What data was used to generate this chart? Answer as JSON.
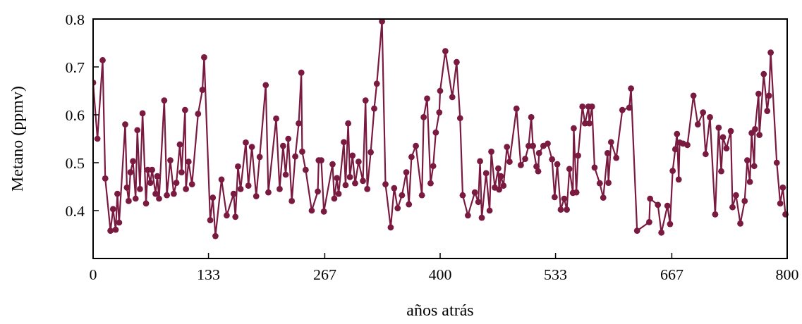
{
  "chart_data": {
    "type": "line",
    "xlabel": "años atrás",
    "ylabel": "Metano (ppmv)",
    "xlim": [
      0,
      800
    ],
    "ylim": [
      0.3,
      0.8
    ],
    "xticks": [
      0,
      133,
      267,
      400,
      533,
      667,
      800
    ],
    "yticks": [
      0.4,
      0.5,
      0.6,
      0.7,
      0.8
    ],
    "grid": false,
    "marker": "circle",
    "line_style": "solid",
    "series": [
      {
        "color": "#7a1a40",
        "x": [
          0,
          5,
          11,
          14,
          20,
          23,
          26,
          28,
          30,
          37,
          39,
          41,
          43,
          46,
          49,
          51,
          54,
          57,
          61,
          63,
          66,
          68,
          72,
          74,
          76,
          82,
          85,
          89,
          93,
          96,
          100,
          102,
          106,
          107,
          110,
          114,
          121,
          126,
          128,
          135,
          138,
          141,
          148,
          154,
          162,
          164,
          167,
          170,
          176,
          179,
          183,
          188,
          192,
          199,
          202,
          211,
          215,
          219,
          222,
          225,
          229,
          233,
          237,
          240,
          241,
          245,
          252,
          259,
          260,
          263,
          266,
          276,
          278,
          281,
          283,
          289,
          291,
          294,
          296,
          299,
          302,
          306,
          311,
          314,
          316,
          320,
          324,
          327,
          333,
          337,
          343,
          347,
          351,
          356,
          361,
          364,
          367,
          372,
          379,
          381,
          385,
          389,
          392,
          395,
          399,
          400,
          406,
          414,
          419,
          423,
          426,
          432,
          440,
          444,
          446,
          448,
          453,
          457,
          459,
          463,
          467,
          468,
          470,
          473,
          477,
          480,
          488,
          493,
          498,
          502,
          505,
          507,
          511,
          513,
          514,
          519,
          524,
          529,
          532,
          535,
          539,
          543,
          546,
          549,
          553,
          554,
          557,
          559,
          564,
          567,
          571,
          572,
          575,
          578,
          584,
          588,
          593,
          594,
          597,
          603,
          610,
          618,
          620,
          627,
          641,
          642,
          651,
          655,
          662,
          665,
          668,
          671,
          673,
          675,
          676,
          680,
          685,
          692,
          697,
          703,
          706,
          711,
          717,
          721,
          724,
          726,
          730,
          735,
          737,
          741,
          746,
          751,
          754,
          757,
          759,
          762,
          763,
          767,
          768,
          773,
          777,
          779,
          781,
          788,
          792,
          795,
          798
        ],
        "values": [
          0.667,
          0.55,
          0.714,
          0.467,
          0.358,
          0.403,
          0.36,
          0.435,
          0.375,
          0.58,
          0.448,
          0.42,
          0.48,
          0.503,
          0.425,
          0.568,
          0.445,
          0.603,
          0.415,
          0.485,
          0.458,
          0.485,
          0.435,
          0.472,
          0.425,
          0.63,
          0.432,
          0.505,
          0.435,
          0.458,
          0.538,
          0.48,
          0.61,
          0.445,
          0.502,
          0.455,
          0.602,
          0.652,
          0.72,
          0.38,
          0.427,
          0.347,
          0.465,
          0.39,
          0.435,
          0.387,
          0.492,
          0.445,
          0.542,
          0.452,
          0.533,
          0.43,
          0.512,
          0.662,
          0.438,
          0.592,
          0.445,
          0.535,
          0.475,
          0.55,
          0.42,
          0.513,
          0.582,
          0.688,
          0.523,
          0.485,
          0.4,
          0.44,
          0.505,
          0.505,
          0.398,
          0.497,
          0.425,
          0.468,
          0.435,
          0.543,
          0.453,
          0.582,
          0.47,
          0.515,
          0.457,
          0.502,
          0.462,
          0.63,
          0.445,
          0.522,
          0.613,
          0.665,
          0.795,
          0.455,
          0.365,
          0.447,
          0.405,
          0.432,
          0.48,
          0.413,
          0.512,
          0.535,
          0.432,
          0.595,
          0.634,
          0.457,
          0.493,
          0.563,
          0.605,
          0.65,
          0.733,
          0.637,
          0.71,
          0.593,
          0.432,
          0.39,
          0.438,
          0.418,
          0.503,
          0.385,
          0.478,
          0.4,
          0.523,
          0.448,
          0.488,
          0.444,
          0.472,
          0.452,
          0.533,
          0.502,
          0.613,
          0.495,
          0.508,
          0.535,
          0.595,
          0.535,
          0.492,
          0.482,
          0.52,
          0.535,
          0.54,
          0.507,
          0.428,
          0.497,
          0.402,
          0.425,
          0.402,
          0.487,
          0.437,
          0.572,
          0.438,
          0.515,
          0.617,
          0.582,
          0.617,
          0.582,
          0.617,
          0.49,
          0.457,
          0.427,
          0.52,
          0.458,
          0.543,
          0.51,
          0.61,
          0.615,
          0.655,
          0.358,
          0.376,
          0.425,
          0.412,
          0.354,
          0.41,
          0.372,
          0.483,
          0.528,
          0.56,
          0.465,
          0.542,
          0.54,
          0.537,
          0.64,
          0.58,
          0.605,
          0.518,
          0.595,
          0.392,
          0.573,
          0.482,
          0.553,
          0.53,
          0.566,
          0.407,
          0.432,
          0.373,
          0.42,
          0.505,
          0.46,
          0.562,
          0.493,
          0.57,
          0.644,
          0.558,
          0.685,
          0.608,
          0.64,
          0.73,
          0.5,
          0.415,
          0.448,
          0.392
        ]
      }
    ]
  }
}
